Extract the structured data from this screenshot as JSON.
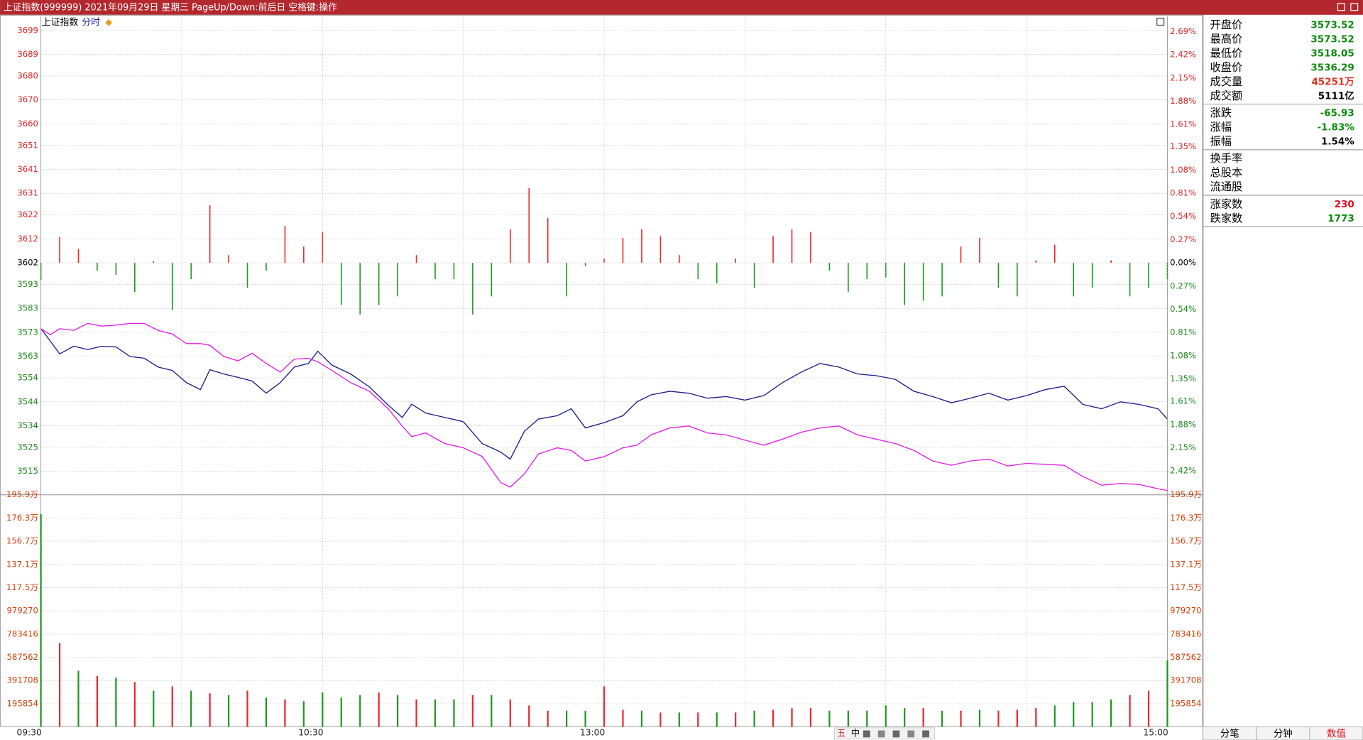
{
  "title_bar": "上证指数(999999) 2021年09月29日 星期三 PageUp/Down:前后日 空格键:操作",
  "chart_tabs": [
    "上证指数",
    "分时"
  ],
  "toolbar": [
    "五",
    "中"
  ],
  "bottom_tabs": [
    {
      "label": "分笔"
    },
    {
      "label": "分钟"
    },
    {
      "label": "数值",
      "active": true
    }
  ],
  "panel": [
    [
      {
        "label": "开盘价",
        "value": "3573.52",
        "color": "#0a8a0a"
      },
      {
        "label": "最高价",
        "value": "3573.52",
        "color": "#0a8a0a"
      },
      {
        "label": "最低价",
        "value": "3518.05",
        "color": "#0a8a0a"
      },
      {
        "label": "收盘价",
        "value": "3536.29",
        "color": "#0a8a0a"
      },
      {
        "label": "成交量",
        "value": "45251万",
        "color": "#e0301e"
      },
      {
        "label": "成交额",
        "value": "5111亿",
        "color": "#000000"
      }
    ],
    [
      {
        "label": "涨跌",
        "value": "-65.93",
        "color": "#0a8a0a"
      },
      {
        "label": "涨幅",
        "value": "-1.83%",
        "color": "#0a8a0a"
      },
      {
        "label": "振幅",
        "value": "1.54%",
        "color": "#000000"
      }
    ],
    [
      {
        "label": "换手率"
      },
      {
        "label": "总股本"
      },
      {
        "label": "流通股"
      }
    ],
    [
      {
        "label": "涨家数",
        "value": "230",
        "color": "#e0101e"
      },
      {
        "label": "跌家数",
        "value": "1773",
        "color": "#0a8a0a"
      }
    ]
  ],
  "chart_data": [
    {
      "type": "line",
      "grid": true,
      "xlim": [
        0,
        240
      ],
      "ylim": [
        3505.2,
        3703.7
      ],
      "yticks": [
        3699,
        3689,
        3680,
        3670,
        3660,
        3651,
        3641,
        3631,
        3622,
        3612,
        3602,
        3593,
        3583,
        3573,
        3563,
        3554,
        3544,
        3534,
        3525,
        3515
      ],
      "x": [
        0,
        2,
        4,
        7,
        10,
        13,
        16,
        19,
        22,
        25,
        28,
        31,
        34,
        36,
        39,
        42,
        45,
        48,
        51,
        54,
        57,
        59,
        62,
        66,
        70,
        74,
        77,
        79,
        82,
        86,
        90,
        94,
        98,
        100,
        103,
        106,
        110,
        113,
        116,
        120,
        124,
        127,
        130,
        134,
        138,
        142,
        146,
        150,
        154,
        158,
        162,
        166,
        170,
        174,
        178,
        182,
        186,
        190,
        194,
        198,
        202,
        206,
        210,
        214,
        218,
        222,
        226,
        230,
        234,
        238,
        240
      ],
      "series": [
        {
          "color": "#1c1c8a",
          "values": [
            3574.5,
            3569.4,
            3564,
            3567.2,
            3565.8,
            3567.2,
            3566.9,
            3562.9,
            3562.2,
            3558.5,
            3557.1,
            3552,
            3549.1,
            3557.4,
            3555.6,
            3554.2,
            3552.7,
            3547.6,
            3552,
            3558.5,
            3560,
            3565.1,
            3559.3,
            3555.6,
            3550.2,
            3542.6,
            3537.5,
            3543,
            3539.3,
            3537.5,
            3535.7,
            3526.6,
            3523,
            3520.1,
            3531.7,
            3536.8,
            3538.2,
            3541.1,
            3533.1,
            3535.3,
            3538.2,
            3544,
            3546.9,
            3548.4,
            3547.6,
            3545.5,
            3546.2,
            3544.7,
            3546.6,
            3552,
            3556.4,
            3560,
            3558.5,
            3555.6,
            3554.9,
            3553.4,
            3548.4,
            3546.2,
            3543.6,
            3545.5,
            3547.6,
            3544.7,
            3546.6,
            3549.1,
            3550.5,
            3542.9,
            3541.1,
            3544,
            3542.9,
            3541.1,
            3536.8
          ]
        },
        {
          "color": "#e31ee3",
          "values": [
            3574.5,
            3572,
            3574.5,
            3573.8,
            3576.7,
            3575.6,
            3576,
            3576.7,
            3576.7,
            3573.8,
            3572.3,
            3568.3,
            3568.3,
            3567.6,
            3562.9,
            3561.1,
            3564.3,
            3560,
            3556.4,
            3561.8,
            3562.2,
            3560.7,
            3557.1,
            3552,
            3548.4,
            3541.1,
            3533.8,
            3529.5,
            3531,
            3526.6,
            3524.8,
            3521.2,
            3510.3,
            3508.4,
            3513.9,
            3522.2,
            3524.8,
            3523.7,
            3519.3,
            3521.1,
            3524.8,
            3525.9,
            3530.2,
            3533.1,
            3533.9,
            3531,
            3530.2,
            3528,
            3525.9,
            3528.4,
            3531.3,
            3533.1,
            3533.9,
            3530.2,
            3528.4,
            3526.6,
            3523.7,
            3519.3,
            3517.5,
            3519.3,
            3520.1,
            3517.2,
            3518.3,
            3517.9,
            3517.5,
            3512.8,
            3509.2,
            3509.9,
            3509.5,
            3507.7,
            3507
          ]
        }
      ]
    },
    {
      "type": "bar",
      "grid": false,
      "xlim": [
        0,
        240
      ],
      "ylim": [
        -2.697,
        2.834
      ],
      "up_color": "#e8262d",
      "down_color": "#1e961e",
      "yticks": [
        {
          "value": 2.69,
          "label": "2.69%"
        },
        {
          "value": 2.42,
          "label": "2.42%"
        },
        {
          "value": 2.15,
          "label": "2.15%"
        },
        {
          "value": 1.88,
          "label": "1.88%"
        },
        {
          "value": 1.61,
          "label": "1.61%"
        },
        {
          "value": 1.35,
          "label": "1.35%"
        },
        {
          "value": 1.08,
          "label": "1.08%"
        },
        {
          "value": 0.81,
          "label": "0.81%"
        },
        {
          "value": 0.54,
          "label": "0.54%"
        },
        {
          "value": 0.27,
          "label": "0.27%"
        },
        {
          "value": 0,
          "label": "0.00%"
        },
        {
          "value": -0.27,
          "label": "0.27%"
        },
        {
          "value": -0.54,
          "label": "0.54%"
        },
        {
          "value": -0.81,
          "label": "0.81%"
        },
        {
          "value": -1.08,
          "label": "1.08%"
        },
        {
          "value": -1.35,
          "label": "1.35%"
        },
        {
          "value": -1.61,
          "label": "1.61%"
        },
        {
          "value": -1.88,
          "label": "1.88%"
        },
        {
          "value": -2.15,
          "label": "2.15%"
        },
        {
          "value": -2.42,
          "label": "2.42%"
        }
      ],
      "x": [
        0,
        4,
        8,
        12,
        16,
        20,
        24,
        28,
        32,
        36,
        40,
        44,
        48,
        52,
        56,
        60,
        64,
        68,
        72,
        76,
        80,
        84,
        88,
        92,
        96,
        100,
        104,
        108,
        112,
        116,
        120,
        124,
        128,
        132,
        136,
        140,
        144,
        148,
        152,
        156,
        160,
        164,
        168,
        172,
        176,
        180,
        184,
        188,
        192,
        196,
        200,
        204,
        208,
        212,
        216,
        220,
        224,
        228,
        232,
        236,
        240
      ],
      "values": [
        -0.2,
        0.3,
        0.16,
        -0.09,
        -0.14,
        -0.34,
        0.02,
        -0.55,
        -0.19,
        0.67,
        0.09,
        -0.29,
        -0.09,
        0.43,
        0.19,
        0.36,
        -0.49,
        -0.6,
        -0.49,
        -0.39,
        0.09,
        -0.19,
        -0.19,
        -0.6,
        -0.39,
        0.39,
        0.87,
        0.52,
        -0.39,
        -0.04,
        0.05,
        0.29,
        0.39,
        0.31,
        0.09,
        -0.19,
        -0.24,
        0.05,
        -0.29,
        0.31,
        0.39,
        0.36,
        -0.09,
        -0.34,
        -0.19,
        -0.17,
        -0.49,
        -0.44,
        -0.39,
        0.19,
        0.29,
        -0.29,
        -0.39,
        0.03,
        0.21,
        -0.39,
        -0.29,
        0.03,
        -0.39,
        -0.29,
        -0.19
      ]
    },
    {
      "type": "bar",
      "grid": true,
      "xlim": [
        0,
        240
      ],
      "ylim": [
        0,
        1958540
      ],
      "tick_color": "#d2400a",
      "yticks": [
        {
          "value": 1958540,
          "label": "195.9万"
        },
        {
          "value": 1762686,
          "label": "176.3万"
        },
        {
          "value": 1566832,
          "label": "156.7万"
        },
        {
          "value": 1370978,
          "label": "137.1万"
        },
        {
          "value": 1175124,
          "label": "117.5万"
        },
        979270,
        783416,
        587562,
        391708,
        195854
      ],
      "xticks": [
        {
          "value": 0,
          "label": "09:30"
        },
        {
          "value": 30,
          "label": null
        },
        {
          "value": 60,
          "label": "10:30"
        },
        {
          "value": 90,
          "label": null
        },
        {
          "value": 120,
          "label": "13:00"
        },
        {
          "value": 150,
          "label": null
        },
        {
          "value": 180,
          "label": null
        },
        {
          "value": 210,
          "label": null
        },
        {
          "value": 240,
          "label": "15:00"
        }
      ],
      "x": [
        0,
        4,
        8,
        12,
        16,
        20,
        24,
        28,
        32,
        36,
        40,
        44,
        48,
        52,
        56,
        60,
        64,
        68,
        72,
        76,
        80,
        84,
        88,
        92,
        96,
        100,
        104,
        108,
        112,
        116,
        120,
        124,
        128,
        132,
        136,
        140,
        144,
        148,
        152,
        156,
        160,
        164,
        168,
        172,
        176,
        180,
        184,
        188,
        192,
        196,
        200,
        204,
        208,
        212,
        216,
        220,
        224,
        228,
        232,
        236,
        240
      ],
      "values": [
        1795000,
        709000,
        474000,
        430000,
        416000,
        379000,
        306000,
        343000,
        306000,
        284000,
        269000,
        306000,
        247000,
        232000,
        218000,
        291000,
        247000,
        269000,
        291000,
        269000,
        232000,
        232000,
        232000,
        269000,
        269000,
        232000,
        181000,
        137000,
        137000,
        137000,
        343000,
        145000,
        137000,
        122000,
        122000,
        122000,
        122000,
        122000,
        137000,
        145000,
        159000,
        159000,
        137000,
        137000,
        137000,
        181000,
        159000,
        159000,
        137000,
        137000,
        145000,
        137000,
        145000,
        159000,
        181000,
        210000,
        210000,
        232000,
        269000,
        306000,
        562000
      ],
      "colors": [
        "#1e961e",
        "#e8262d",
        "#1e961e",
        "#e8262d",
        "#1e961e",
        "#e8262d",
        "#1e961e",
        "#e8262d",
        "#1e961e",
        "#e8262d",
        "#1e961e",
        "#e8262d",
        "#1e961e",
        "#e8262d",
        "#1e961e",
        "#1e961e",
        "#1e961e",
        "#1e961e",
        "#e8262d",
        "#1e961e",
        "#e8262d",
        "#1e961e",
        "#1e961e",
        "#e8262d",
        "#1e961e",
        "#e8262d",
        "#e8262d",
        "#e8262d",
        "#1e961e",
        "#1e961e",
        "#e8262d",
        "#e8262d",
        "#1e961e",
        "#e8262d",
        "#1e961e",
        "#e8262d",
        "#1e961e",
        "#e8262d",
        "#1e961e",
        "#e8262d",
        "#e8262d",
        "#e8262d",
        "#1e961e",
        "#1e961e",
        "#1e961e",
        "#1e961e",
        "#1e961e",
        "#e8262d",
        "#1e961e",
        "#e8262d",
        "#1e961e",
        "#e8262d",
        "#e8262d",
        "#e8262d",
        "#1e961e",
        "#1e961e",
        "#1e961e",
        "#1e961e",
        "#e8262d",
        "#e8262d",
        "#1e961e"
      ]
    }
  ]
}
